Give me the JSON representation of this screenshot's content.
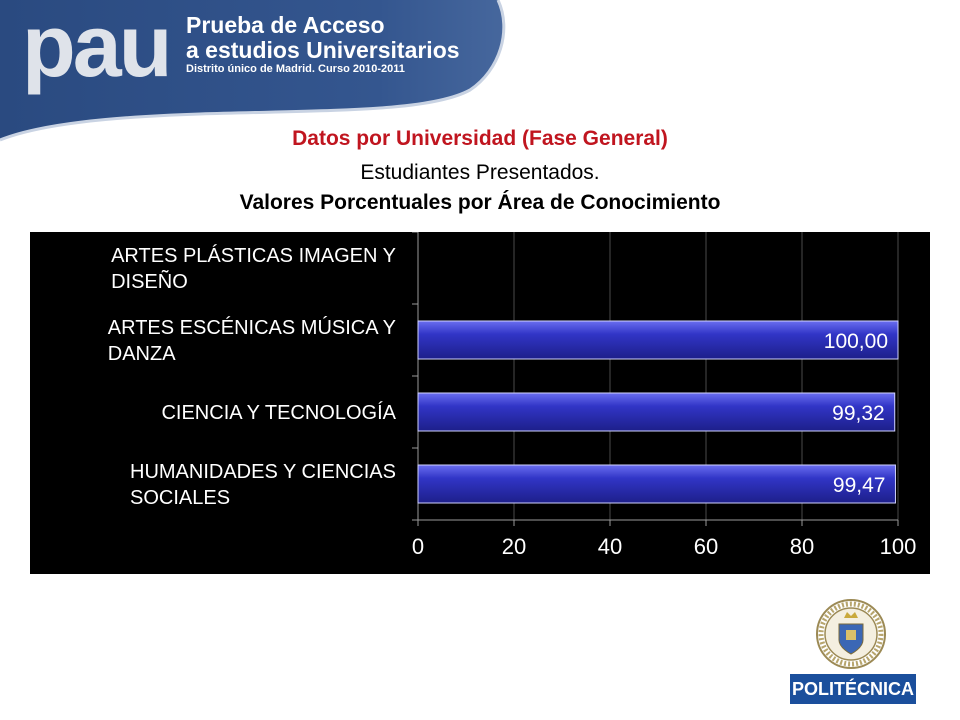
{
  "header": {
    "logo_text": "pau",
    "line1": "Prueba de Acceso",
    "line2": "a estudios Universitarios",
    "line3": "Distrito único de Madrid. Curso 2010-2011",
    "band_color": "#2f4f86"
  },
  "titles": {
    "main": "Datos por Universidad (Fase General)",
    "sub": "Estudiantes Presentados.",
    "sub2": "Valores Porcentuales por Área de Conocimiento"
  },
  "chart_data": {
    "type": "bar",
    "orientation": "horizontal",
    "categories": [
      [
        "ARTES PLÁSTICAS IMAGEN Y",
        "DISEÑO"
      ],
      [
        "ARTES ESCÉNICAS MÚSICA Y",
        "DANZA"
      ],
      [
        "CIENCIA Y TECNOLOGÍA"
      ],
      [
        "HUMANIDADES Y CIENCIAS",
        "SOCIALES"
      ]
    ],
    "values": [
      null,
      100.0,
      99.32,
      99.47
    ],
    "value_labels": [
      "",
      "100,00",
      "99,32",
      "99,47"
    ],
    "xlim": [
      0,
      100
    ],
    "xticks": [
      "0",
      "20",
      "40",
      "60",
      "80",
      "100"
    ],
    "grid": true,
    "background": "#000000",
    "bar_color": "#2a2eb0",
    "text_color": "#ffffff"
  },
  "footer": {
    "seal_ring_text": "UNIVERSIDAD POLITÉCNICA · MADRID ·",
    "brand": "POLITÉCNICA",
    "brand_color": "#1b4f9c"
  }
}
